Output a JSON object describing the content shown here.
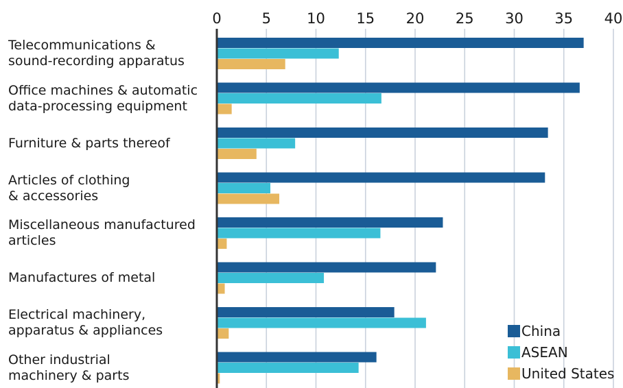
{
  "chart_data": {
    "type": "bar",
    "orientation": "horizontal",
    "categories": [
      [
        "Telecommunications &",
        "sound-recording apparatus"
      ],
      [
        "Office machines & automatic",
        "data-processing equipment"
      ],
      [
        "Furniture & parts thereof"
      ],
      [
        "Articles of clothing",
        "& accessories"
      ],
      [
        "Miscellaneous manufactured",
        "articles"
      ],
      [
        "Manufactures of metal"
      ],
      [
        "Electrical machinery,",
        "apparatus & appliances"
      ],
      [
        "Other industrial",
        "machinery & parts"
      ]
    ],
    "series": [
      {
        "name": "China",
        "color": "#1a5c96",
        "values": [
          37.0,
          36.6,
          33.4,
          33.1,
          22.8,
          22.1,
          17.9,
          16.1
        ]
      },
      {
        "name": "ASEAN",
        "color": "#3bbfd6",
        "values": [
          12.3,
          16.6,
          7.9,
          5.4,
          16.5,
          10.8,
          21.1,
          14.3
        ]
      },
      {
        "name": "United States",
        "color": "#e7b760",
        "values": [
          6.9,
          1.5,
          4.0,
          6.3,
          1.0,
          0.8,
          1.2,
          0.3
        ]
      }
    ],
    "x_ticks": [
      0,
      5,
      10,
      15,
      20,
      25,
      30,
      35,
      40
    ],
    "xlim": [
      0,
      40
    ],
    "grid": "vertical",
    "legend_position": "bottom-right",
    "xlabel": "",
    "ylabel": "",
    "title": ""
  }
}
